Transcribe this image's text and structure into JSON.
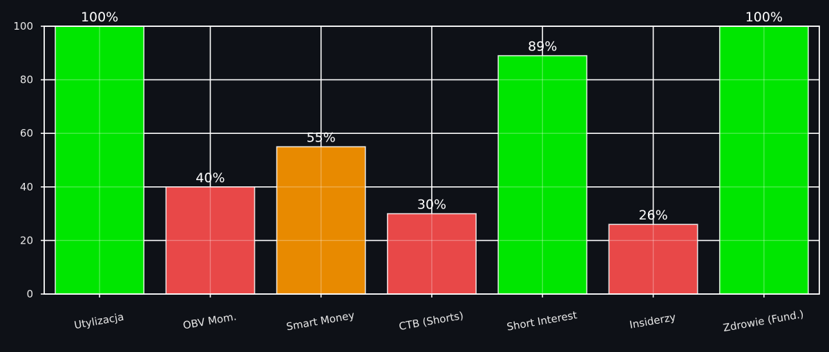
{
  "chart_data": {
    "type": "bar",
    "title": "",
    "xlabel": "",
    "ylabel": "",
    "ylim": [
      0,
      100
    ],
    "yticks": [
      0,
      20,
      40,
      60,
      80,
      100
    ],
    "grid": true,
    "categories": [
      "Utylizacja",
      "OBV Mom.",
      "Smart Money",
      "CTB (Shorts)",
      "Short Interest",
      "Insiderzy",
      "Zdrowie (Fund.)"
    ],
    "values": [
      100,
      40,
      55,
      30,
      89,
      26,
      100
    ],
    "data_labels": [
      "100%",
      "40%",
      "55%",
      "30%",
      "89%",
      "26%",
      "100%"
    ],
    "bar_colors": [
      "#00e600",
      "#e84848",
      "#e88a00",
      "#e84848",
      "#00e600",
      "#e84848",
      "#00e600"
    ]
  },
  "colors": {
    "background": "#0e1117",
    "axis": "#ffffff",
    "grid": "#ffffff",
    "text": "#ffffff",
    "tick_text": "#e8e8e8"
  }
}
